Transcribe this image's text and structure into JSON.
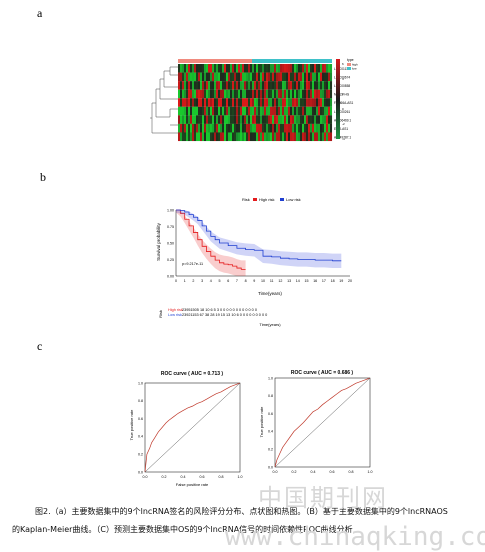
{
  "panels": {
    "a": "a",
    "b": "b",
    "c": "c"
  },
  "heatmap": {
    "legend_title": "type",
    "legend_groups": [
      "high",
      "low"
    ],
    "group_colors": {
      "high": "#f08a7e",
      "low": "#3fc1c9"
    },
    "color_ticks": [
      "6",
      "4",
      "2",
      "0",
      "-2",
      "-4"
    ],
    "genes": [
      "LINC01117",
      "LINC00674",
      "LINC00858",
      "MIR22-HG",
      "FAM66A-AS1",
      "LINC00261",
      "AL606469.1",
      "EGO-AS1",
      "AL049787.1"
    ]
  },
  "km": {
    "legend_title": "Risk",
    "legend_items": [
      "High risk",
      "Low risk"
    ],
    "colors": {
      "high": "#e41a1c",
      "low": "#1f3fd1"
    },
    "ylabel": "Survival probability",
    "xlabel": "Time(years)",
    "pvalue": "p=9.217e-11",
    "yticks": [
      "1.00",
      "0.75",
      "0.50",
      "0.25",
      "0.00"
    ],
    "xticks": [
      "0",
      "1",
      "2",
      "3",
      "4",
      "5",
      "6",
      "7",
      "8",
      "9",
      "10",
      "11",
      "12",
      "13",
      "14",
      "15",
      "16",
      "17",
      "18",
      "19",
      "20"
    ],
    "risk_table_label": "Risk",
    "risk_rows": [
      {
        "name": "High risk",
        "text": "23951505 18 10 6 5 3 0 0 0 0 0 0 0 0 0 0 0 0"
      },
      {
        "name": "Low risk",
        "text": "23921153 67 38 28 19 15 13 10 6 0 0 0 0 0 0 0 0 0"
      }
    ],
    "risk_xlabel": "Time(years)"
  },
  "chart_data": [
    {
      "type": "line",
      "title": "",
      "xlabel": "Time(years)",
      "ylabel": "Survival probability",
      "xlim": [
        0,
        20
      ],
      "ylim": [
        0,
        1
      ],
      "series": [
        {
          "name": "High risk",
          "x": [
            0,
            0.5,
            1,
            1.5,
            2,
            2.5,
            3,
            3.5,
            4,
            4.5,
            5,
            5.5,
            6,
            6.5,
            7,
            7.5,
            8
          ],
          "values": [
            1.0,
            0.95,
            0.86,
            0.76,
            0.66,
            0.55,
            0.45,
            0.37,
            0.3,
            0.24,
            0.2,
            0.18,
            0.17,
            0.15,
            0.12,
            0.1,
            0.1
          ]
        },
        {
          "name": "Low risk",
          "x": [
            0,
            0.5,
            1,
            1.5,
            2,
            2.5,
            3,
            3.5,
            4,
            4.5,
            5,
            6,
            7,
            8,
            9,
            10,
            11,
            12,
            13,
            14,
            15,
            16,
            17,
            18,
            19
          ],
          "values": [
            1.0,
            0.99,
            0.97,
            0.93,
            0.89,
            0.84,
            0.76,
            0.68,
            0.6,
            0.55,
            0.5,
            0.46,
            0.42,
            0.4,
            0.39,
            0.3,
            0.29,
            0.27,
            0.26,
            0.25,
            0.25,
            0.24,
            0.24,
            0.23,
            0.23
          ]
        }
      ]
    },
    {
      "type": "line",
      "title": "ROC curve ( AUC = 0.713 )",
      "xlabel": "False positive rate",
      "ylabel": "True positive rate",
      "xlim": [
        0,
        1
      ],
      "ylim": [
        0,
        1
      ],
      "series": [
        {
          "x": [
            0,
            0.01,
            0.02,
            0.05,
            0.07,
            0.1,
            0.14,
            0.18,
            0.22,
            0.25,
            0.3,
            0.35,
            0.4,
            0.45,
            0.5,
            0.55,
            0.6,
            0.65,
            0.7,
            0.75,
            0.8,
            0.85,
            0.9,
            0.95,
            1.0
          ],
          "values": [
            0,
            0.1,
            0.2,
            0.27,
            0.33,
            0.38,
            0.45,
            0.5,
            0.55,
            0.58,
            0.62,
            0.66,
            0.69,
            0.72,
            0.74,
            0.77,
            0.79,
            0.82,
            0.85,
            0.88,
            0.9,
            0.93,
            0.96,
            0.98,
            1.0
          ]
        },
        {
          "x": [
            0,
            1
          ],
          "values": [
            0,
            1
          ]
        }
      ]
    },
    {
      "type": "line",
      "title": "ROC curve ( AUC = 0.686 )",
      "xlabel": "",
      "ylabel": "True positive rate",
      "xlim": [
        0,
        1
      ],
      "ylim": [
        0,
        1
      ],
      "series": [
        {
          "x": [
            0,
            0.02,
            0.05,
            0.08,
            0.12,
            0.16,
            0.2,
            0.25,
            0.3,
            0.35,
            0.4,
            0.45,
            0.5,
            0.55,
            0.6,
            0.65,
            0.7,
            0.75,
            0.8,
            0.85,
            0.9,
            0.95,
            1.0
          ],
          "values": [
            0,
            0.08,
            0.15,
            0.22,
            0.28,
            0.34,
            0.4,
            0.45,
            0.5,
            0.56,
            0.62,
            0.65,
            0.7,
            0.74,
            0.78,
            0.82,
            0.86,
            0.88,
            0.91,
            0.94,
            0.96,
            0.98,
            1.0
          ]
        },
        {
          "x": [
            0,
            1
          ],
          "values": [
            0,
            1
          ]
        }
      ]
    }
  ],
  "roc": {
    "axis_ticks": [
      "0.0",
      "0.2",
      "0.4",
      "0.6",
      "0.8",
      "1.0"
    ]
  },
  "caption": {
    "line1": "图2.（a）主要数据集中的9个lncRNA签名的风险评分分布、点状图和热图。（B）基于主要数据集中的9个lncRNAOS",
    "line2": "的Kaplan-Meier曲线。（C）预测主要数据集中OS的9个lncRNA信号的时间依赖性ROC曲线分析"
  },
  "watermark": {
    "cn": "中国期刊网",
    "url": "www.chinaqking.com"
  }
}
